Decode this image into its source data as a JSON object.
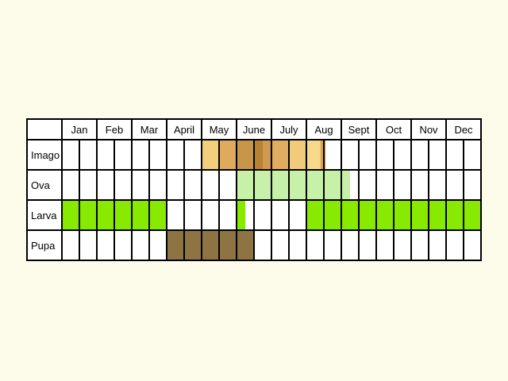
{
  "colors": {
    "background": "#fdfcea",
    "grid": "#000000",
    "cell": "#ffffff"
  },
  "months": [
    "Jan",
    "Feb",
    "Mar",
    "April",
    "May",
    "June",
    "July",
    "Aug",
    "Sept",
    "Oct",
    "Nov",
    "Dec"
  ],
  "stages": [
    {
      "label": "Imago",
      "key": "imago",
      "bands": [
        {
          "start": 4.0,
          "end": 4.5,
          "color": "#f3cf7c"
        },
        {
          "start": 4.5,
          "end": 5.0,
          "color": "#ddaa5e"
        },
        {
          "start": 5.0,
          "end": 5.5,
          "color": "#c8964a"
        },
        {
          "start": 5.5,
          "end": 5.75,
          "color": "#b88236"
        },
        {
          "start": 5.75,
          "end": 6.0,
          "color": "#cf9a4c"
        },
        {
          "start": 6.0,
          "end": 6.5,
          "color": "#e0ac60"
        },
        {
          "start": 6.5,
          "end": 7.0,
          "color": "#f1ca7c"
        },
        {
          "start": 7.0,
          "end": 7.4,
          "color": "#f7d98c"
        },
        {
          "start": 7.4,
          "end": 7.55,
          "color": "#d9a553"
        }
      ]
    },
    {
      "label": "Ova",
      "key": "ova",
      "bands": [
        {
          "start": 5.0,
          "end": 8.25,
          "color": "#c7f0a8"
        }
      ]
    },
    {
      "label": "Larva",
      "key": "larva",
      "bands": [
        {
          "start": 0.0,
          "end": 3.0,
          "color": "#88ea00"
        },
        {
          "start": 5.0,
          "end": 5.25,
          "color": "#88ea00"
        },
        {
          "start": 7.0,
          "end": 12.0,
          "color": "#88ea00"
        }
      ]
    },
    {
      "label": "Pupa",
      "key": "pupa",
      "bands": [
        {
          "start": 3.0,
          "end": 5.5,
          "color": "#8f7443"
        }
      ]
    }
  ]
}
